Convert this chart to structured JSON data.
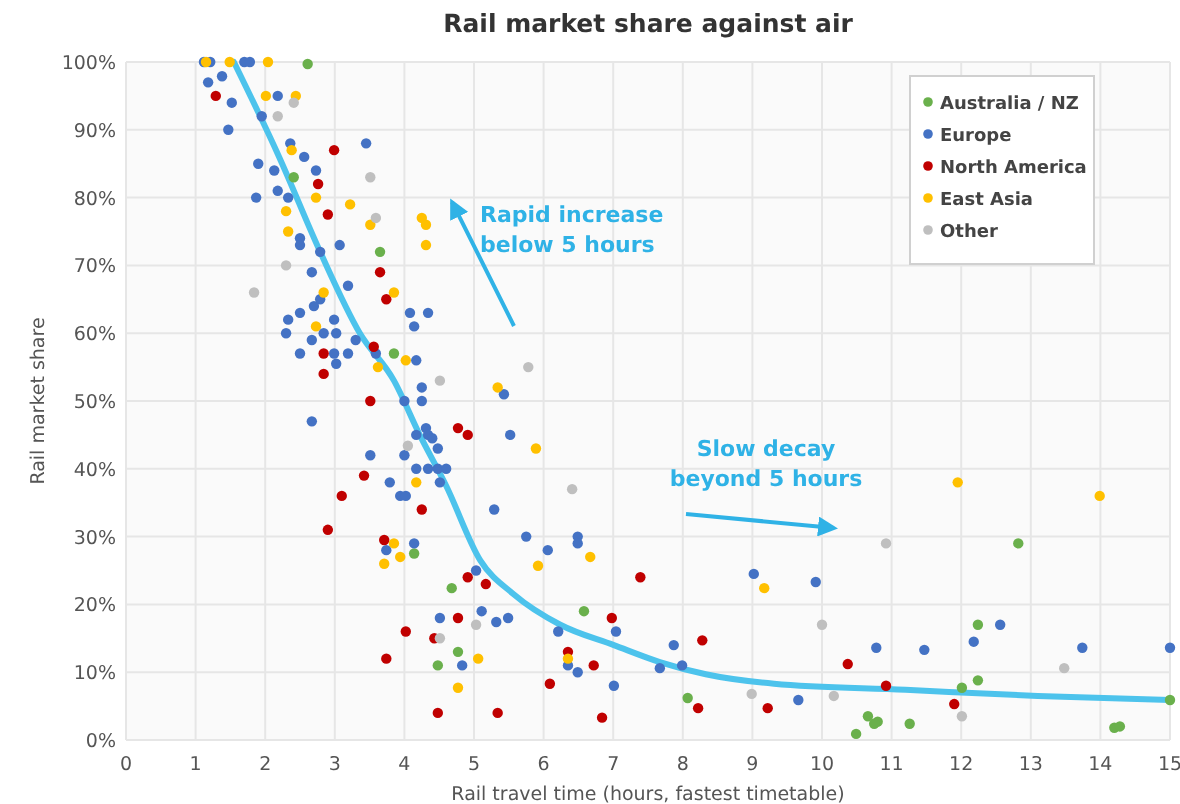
{
  "chart_data": {
    "type": "scatter",
    "title": "Rail market share against air",
    "xlabel": "Rail travel time (hours, fastest timetable)",
    "ylabel": "Rail market share",
    "xlim": [
      0,
      15
    ],
    "xticks": [
      0,
      1,
      2,
      3,
      4,
      5,
      6,
      7,
      8,
      9,
      10,
      11,
      12,
      13,
      14,
      15
    ],
    "ylim": [
      0,
      100
    ],
    "yticks": [
      {
        "value": 0,
        "label": "0%"
      },
      {
        "value": 10,
        "label": "10%"
      },
      {
        "value": 20,
        "label": "20%"
      },
      {
        "value": 30,
        "label": "30%"
      },
      {
        "value": 40,
        "label": "40%"
      },
      {
        "value": 50,
        "label": "50%"
      },
      {
        "value": 60,
        "label": "60%"
      },
      {
        "value": 70,
        "label": "70%"
      },
      {
        "value": 80,
        "label": "80%"
      },
      {
        "value": 90,
        "label": "90%"
      },
      {
        "value": 100,
        "label": "100%"
      }
    ],
    "grid": true,
    "legend": "top right",
    "marker": "circle",
    "annotations": [
      "Rapid increase\nbelow 5 hours",
      "Slow decay\nbeyond 5 hours"
    ],
    "series": [
      {
        "name": "Australia / NZ",
        "color": "#6ab04c",
        "x": [
          2.61,
          2.41,
          3.65,
          3.85,
          4.14,
          4.68,
          4.77,
          4.48,
          6.58,
          12.82,
          12.24,
          12.24,
          12.01,
          8.07,
          10.66,
          10.8,
          10.75,
          10.49,
          11.26,
          14.2,
          14.28,
          15
        ],
        "values": [
          99.7,
          83,
          72,
          57,
          27.5,
          22.4,
          13,
          11,
          19,
          29,
          17,
          8.8,
          7.7,
          6.2,
          3.5,
          2.7,
          2.4,
          0.9,
          2.4,
          1.8,
          2,
          5.9
        ]
      },
      {
        "name": "Europe",
        "color": "#4472c4",
        "x": [
          1.12,
          1.21,
          1.7,
          1.78,
          1.38,
          1.18,
          2.18,
          1.52,
          1.95,
          1.47,
          2.36,
          3.45,
          2.56,
          1.9,
          2.13,
          2.73,
          2.18,
          1.87,
          2.33,
          2.5,
          2.5,
          2.79,
          3.07,
          2.67,
          3.19,
          2.7,
          2.79,
          2.5,
          2.33,
          2.3,
          2.99,
          2.67,
          2.84,
          3.02,
          3.3,
          2.5,
          2.99,
          3.19,
          3.02,
          3.59,
          4.08,
          4.34,
          4.14,
          4.17,
          4.25,
          4.25,
          5.43,
          4.0,
          5.52,
          4.31,
          4.34,
          4.4,
          4.48,
          4.17,
          4.0,
          4.17,
          4.34,
          4.48,
          4.6,
          4.51,
          3.79,
          3.94,
          4.02,
          5.29,
          4.14,
          3.74,
          5.75,
          6.06,
          6.49,
          6.49,
          5.03,
          4.51,
          5.11,
          5.32,
          5.49,
          7.04,
          6.21,
          4.83,
          6.35,
          6.49,
          7.01,
          2.67,
          3.51,
          9.02,
          9.91,
          12.56,
          7.87,
          10.78,
          11.47,
          12.18,
          13.74,
          15,
          7.67,
          7.99,
          9.66
        ],
        "values": [
          100,
          100,
          100,
          100,
          97.9,
          97,
          95,
          94,
          92,
          90,
          88,
          88,
          86,
          85,
          84,
          84,
          81,
          80,
          80,
          74,
          73,
          72,
          73,
          69,
          67,
          64,
          65,
          63,
          62,
          60,
          62,
          59,
          60,
          60,
          59,
          57,
          57,
          57,
          55.5,
          57,
          63,
          63,
          61,
          56,
          52,
          50,
          51,
          50,
          45,
          46,
          45,
          44.5,
          43,
          45,
          42,
          40,
          40,
          40,
          40,
          38,
          38,
          36,
          36,
          34,
          29,
          28,
          30,
          28,
          30,
          29,
          25,
          18,
          19,
          17.4,
          18,
          16,
          16,
          11,
          11,
          10,
          8,
          47,
          42,
          24.5,
          23.3,
          17,
          14,
          13.6,
          13.3,
          14.5,
          13.6,
          13.6,
          10.6,
          11,
          5.9
        ]
      },
      {
        "name": "North America",
        "color": "#c00000",
        "x": [
          1.29,
          2.99,
          2.76,
          2.9,
          3.65,
          3.74,
          3.56,
          2.84,
          2.84,
          3.51,
          4.77,
          4.91,
          4.25,
          3.71,
          4.91,
          5.17,
          7.39,
          4.02,
          4.77,
          4.43,
          6.98,
          3.74,
          6.35,
          6.72,
          6.09,
          4.48,
          5.34,
          6.84,
          3.42,
          3.1,
          2.9,
          8.28,
          10.37,
          10.92,
          8.22,
          9.22,
          11.9
        ],
        "values": [
          95,
          87,
          82,
          77.5,
          69,
          65,
          58,
          57,
          54,
          50,
          46,
          45,
          34,
          29.5,
          24,
          23,
          24,
          16,
          18,
          15,
          18,
          12,
          13,
          11,
          8.3,
          4,
          4,
          3.3,
          39,
          36,
          31,
          14.7,
          11.2,
          8,
          4.7,
          4.7,
          5.3
        ]
      },
      {
        "name": "East Asia",
        "color": "#ffc000",
        "x": [
          1.15,
          1.49,
          2.04,
          2.01,
          2.44,
          2.38,
          2.73,
          2.3,
          3.22,
          3.51,
          2.33,
          3.85,
          2.84,
          2.73,
          3.62,
          4.25,
          4.31,
          4.31,
          4.02,
          5.34,
          5.89,
          4.17,
          3.85,
          3.94,
          3.71,
          6.67,
          5.92,
          5.06,
          6.35,
          4.77,
          11.95,
          13.99,
          9.17
        ],
        "values": [
          100,
          100,
          100,
          95,
          95,
          87,
          80,
          78,
          79,
          76,
          75,
          66,
          66,
          61,
          55,
          77,
          76,
          73,
          56,
          52,
          43,
          38,
          29,
          27,
          26,
          27,
          25.7,
          12,
          12,
          7.7,
          38,
          36,
          22.4
        ]
      },
      {
        "name": "Other",
        "color": "#bfbfbf",
        "x": [
          2.41,
          2.18,
          3.51,
          3.59,
          2.3,
          1.84,
          4.51,
          5.78,
          4.05,
          6.41,
          4.51,
          5.03,
          10.92,
          10,
          13.48,
          8.99,
          10.17,
          12.01
        ],
        "values": [
          94,
          92,
          83,
          77,
          70,
          66,
          53,
          55,
          43.4,
          37,
          15,
          17,
          29,
          17,
          10.6,
          6.8,
          6.5,
          3.5
        ]
      },
      {
        "type": "line",
        "color": "#4dc3ec",
        "marker": "none",
        "x": [
          1.55,
          2.2,
          2.79,
          3.36,
          3.85,
          4.22,
          4.6,
          5.09,
          5.57,
          6.24,
          7.01,
          7.67,
          8.33,
          9.31,
          11.2,
          13.1,
          15
        ],
        "values": [
          100,
          86,
          72,
          60,
          53,
          45,
          37.5,
          26.5,
          21.5,
          17,
          14,
          11.5,
          9.7,
          8.3,
          7.4,
          6.5,
          5.9
        ]
      }
    ]
  }
}
